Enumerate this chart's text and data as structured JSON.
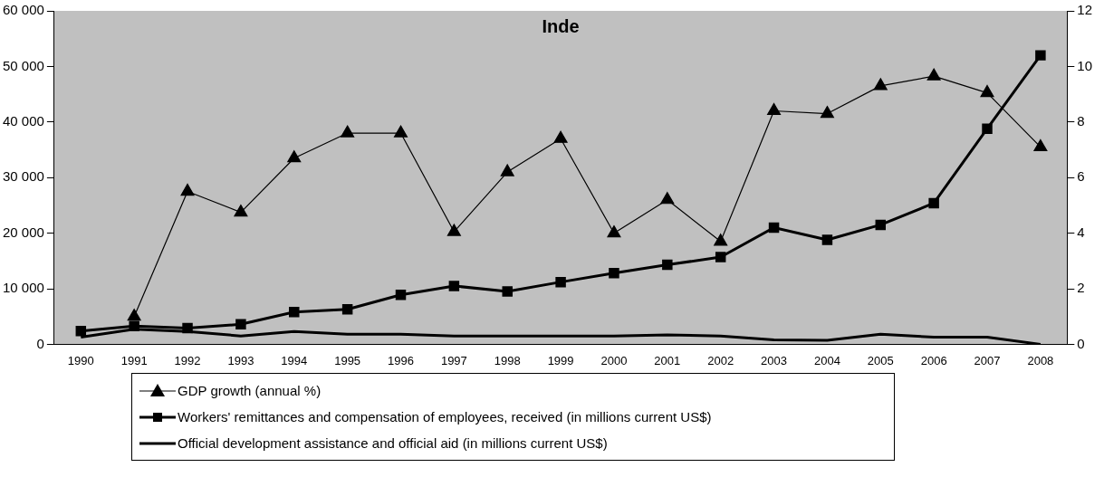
{
  "chart_data": {
    "type": "line",
    "title": "Inde",
    "categories": [
      "1990",
      "1991",
      "1992",
      "1993",
      "1994",
      "1995",
      "1996",
      "1997",
      "1998",
      "1999",
      "2000",
      "2001",
      "2002",
      "2003",
      "2004",
      "2005",
      "2006",
      "2007",
      "2008"
    ],
    "series": [
      {
        "name": "GDP growth (annual %)",
        "color": "#000000",
        "axis": "y2",
        "marker": "triangle",
        "values": [
          null,
          1.0,
          5.5,
          4.75,
          6.7,
          7.6,
          7.6,
          4.05,
          6.2,
          7.4,
          4.0,
          5.2,
          3.7,
          8.4,
          8.3,
          9.3,
          9.65,
          9.05,
          7.1
        ]
      },
      {
        "name": "Workers' remittances and compensation of employees, received (in millions current US$)",
        "color": "#000000",
        "marker": "square",
        "values": [
          2400,
          3300,
          2900,
          3600,
          5800,
          6300,
          8900,
          10500,
          9500,
          11200,
          12800,
          14300,
          15700,
          21000,
          18800,
          21500,
          25400,
          38800,
          52000
        ]
      },
      {
        "name": "Official development assistance and official aid (in millions current US$)",
        "color": "#000000",
        "marker": "none",
        "values": [
          1300,
          2700,
          2300,
          1500,
          2300,
          1800,
          1800,
          1500,
          1500,
          1500,
          1500,
          1700,
          1500,
          800,
          700,
          1800,
          1300,
          1300,
          0
        ]
      }
    ],
    "ylim": [
      0,
      60000
    ],
    "yticks": [
      {
        "value": 0,
        "label": "0"
      },
      {
        "value": 10000,
        "label": "10 000"
      },
      {
        "value": 20000,
        "label": "20 000"
      },
      {
        "value": 30000,
        "label": "30 000"
      },
      {
        "value": 40000,
        "label": "40 000"
      },
      {
        "value": 50000,
        "label": "50 000"
      },
      {
        "value": 60000,
        "label": "60 000"
      }
    ],
    "y2lim": [
      0,
      12
    ],
    "y2ticks": [
      0,
      2,
      4,
      6,
      8,
      10,
      12
    ],
    "grid": false,
    "legend": "bottom"
  }
}
